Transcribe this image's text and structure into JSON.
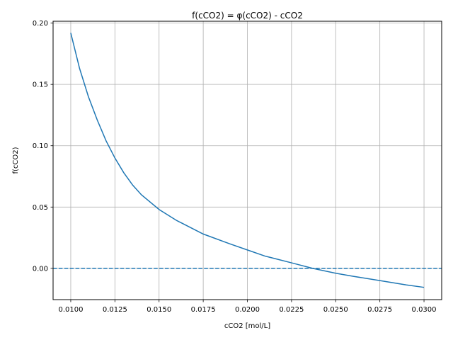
{
  "chart_data": {
    "type": "line",
    "title": "f(cCO2) = φ(cCO2) - cCO2",
    "xlabel": "cCO2 [mol/L]",
    "ylabel": "f(cCO2)",
    "xlim": [
      0.009,
      0.031
    ],
    "ylim": [
      -0.0255,
      0.2015
    ],
    "grid": true,
    "x_ticks": [
      0.01,
      0.0125,
      0.015,
      0.0175,
      0.02,
      0.0225,
      0.025,
      0.0275,
      0.03
    ],
    "x_tick_labels": [
      "0.0100",
      "0.0125",
      "0.0150",
      "0.0175",
      "0.0200",
      "0.0225",
      "0.0250",
      "0.0275",
      "0.0300"
    ],
    "y_ticks": [
      0.0,
      0.05,
      0.1,
      0.15,
      0.2
    ],
    "y_tick_labels": [
      "0.00",
      "0.05",
      "0.10",
      "0.15",
      "0.20"
    ],
    "series": [
      {
        "color": "#1f77b4",
        "style": "solid",
        "x": [
          0.01,
          0.0105,
          0.011,
          0.0115,
          0.012,
          0.0125,
          0.013,
          0.0135,
          0.014,
          0.015,
          0.016,
          0.0175,
          0.019,
          0.02,
          0.021,
          0.0225,
          0.0237,
          0.025,
          0.026,
          0.0275,
          0.029,
          0.03
        ],
        "y": [
          0.192,
          0.163,
          0.14,
          0.121,
          0.104,
          0.09,
          0.078,
          0.068,
          0.06,
          0.048,
          0.039,
          0.028,
          0.02,
          0.015,
          0.01,
          0.0045,
          0.0,
          -0.004,
          -0.0065,
          -0.01,
          -0.0135,
          -0.0155
        ]
      },
      {
        "color": "#1f77b4",
        "style": "dashed",
        "x": [
          0.009,
          0.031
        ],
        "y": [
          0.0,
          0.0
        ]
      }
    ]
  }
}
